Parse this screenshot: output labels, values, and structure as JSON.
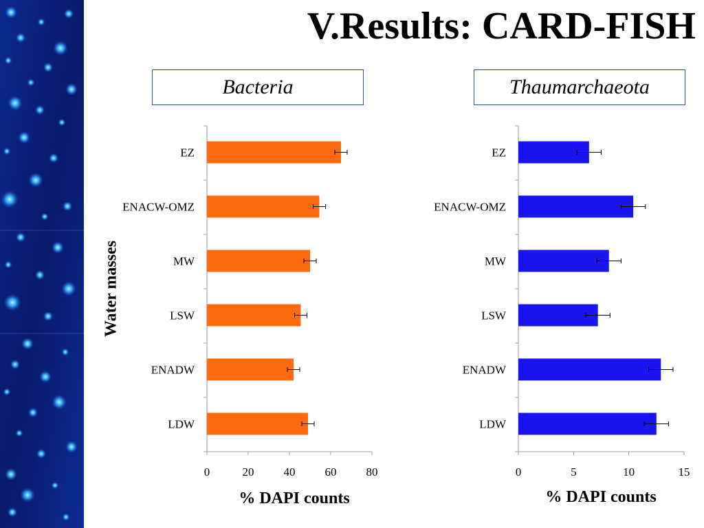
{
  "slide": {
    "title": "V.Results: CARD-FISH",
    "ylabel": "Water masses"
  },
  "colors": {
    "bacteria_bar": "#ff6a0e",
    "thaum_bar": "#1a14f0",
    "label_border": "#2e4f9a",
    "side_strip": "#0a1f7a"
  },
  "chart_data": [
    {
      "type": "bar",
      "orientation": "horizontal",
      "title": "Bacteria",
      "xlabel": "% DAPI counts",
      "ylabel": "Water masses",
      "categories": [
        "EZ",
        "ENACW-OMZ",
        "MW",
        "LSW",
        "ENADW",
        "LDW"
      ],
      "values": [
        65,
        54.5,
        50,
        45.5,
        42,
        49
      ],
      "errors": [
        3,
        3,
        3,
        3,
        3,
        3
      ],
      "xlim": [
        0,
        80
      ],
      "xticks": [
        0,
        20,
        40,
        60,
        80
      ],
      "grid": false,
      "color": "#ff6a0e"
    },
    {
      "type": "bar",
      "orientation": "horizontal",
      "title": "Thaumarchaeota",
      "xlabel": "% DAPI counts",
      "ylabel": "",
      "categories": [
        "EZ",
        "ENACW-OMZ",
        "MW",
        "LSW",
        "ENADW",
        "LDW"
      ],
      "values": [
        6.4,
        10.4,
        8.2,
        7.2,
        12.9,
        12.5
      ],
      "errors": [
        1.1,
        1.1,
        1.1,
        1.1,
        1.1,
        1.1
      ],
      "xlim": [
        0,
        15
      ],
      "xticks": [
        0,
        5,
        10,
        15
      ],
      "grid": false,
      "color": "#1a14f0"
    }
  ]
}
